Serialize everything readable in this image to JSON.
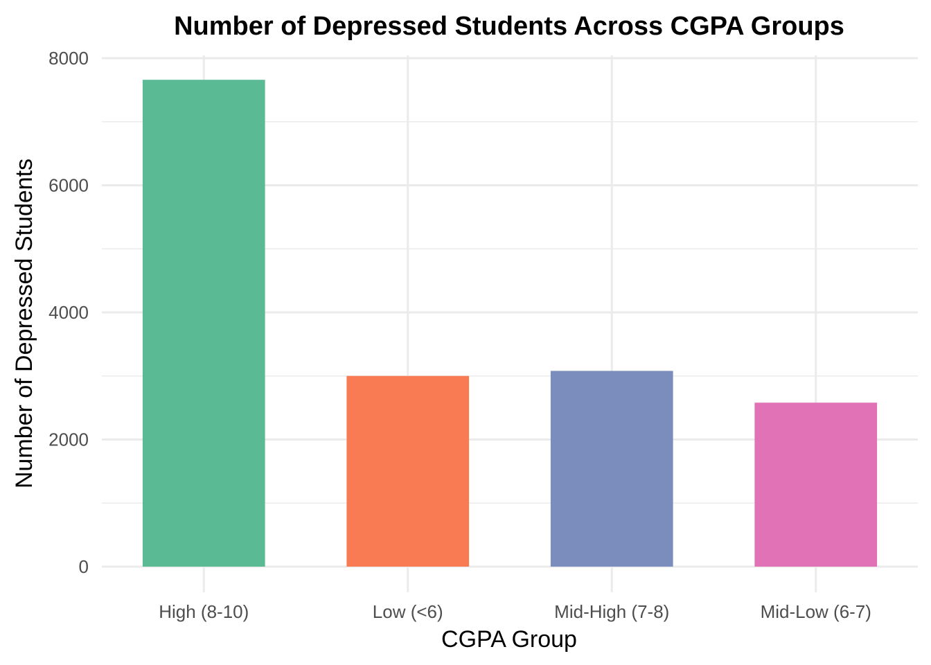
{
  "chart_data": {
    "type": "bar",
    "title": "Number of Depressed Students Across CGPA Groups",
    "xlabel": "CGPA Group",
    "ylabel": "Number of Depressed Students",
    "categories": [
      "High (8-10)",
      "Low (<6)",
      "Mid-High (7-8)",
      "Mid-Low (6-7)"
    ],
    "values": [
      7660,
      3000,
      3080,
      2580
    ],
    "colors": [
      "#59BA93",
      "#F87B53",
      "#7B8DBD",
      "#E072B5"
    ],
    "ylim": [
      0,
      8000
    ],
    "yticks": [
      0,
      2000,
      4000,
      6000,
      8000
    ],
    "ytick_labels": [
      "0",
      "2000",
      "4000",
      "6000",
      "8000"
    ],
    "grid": true,
    "legend": "none"
  }
}
